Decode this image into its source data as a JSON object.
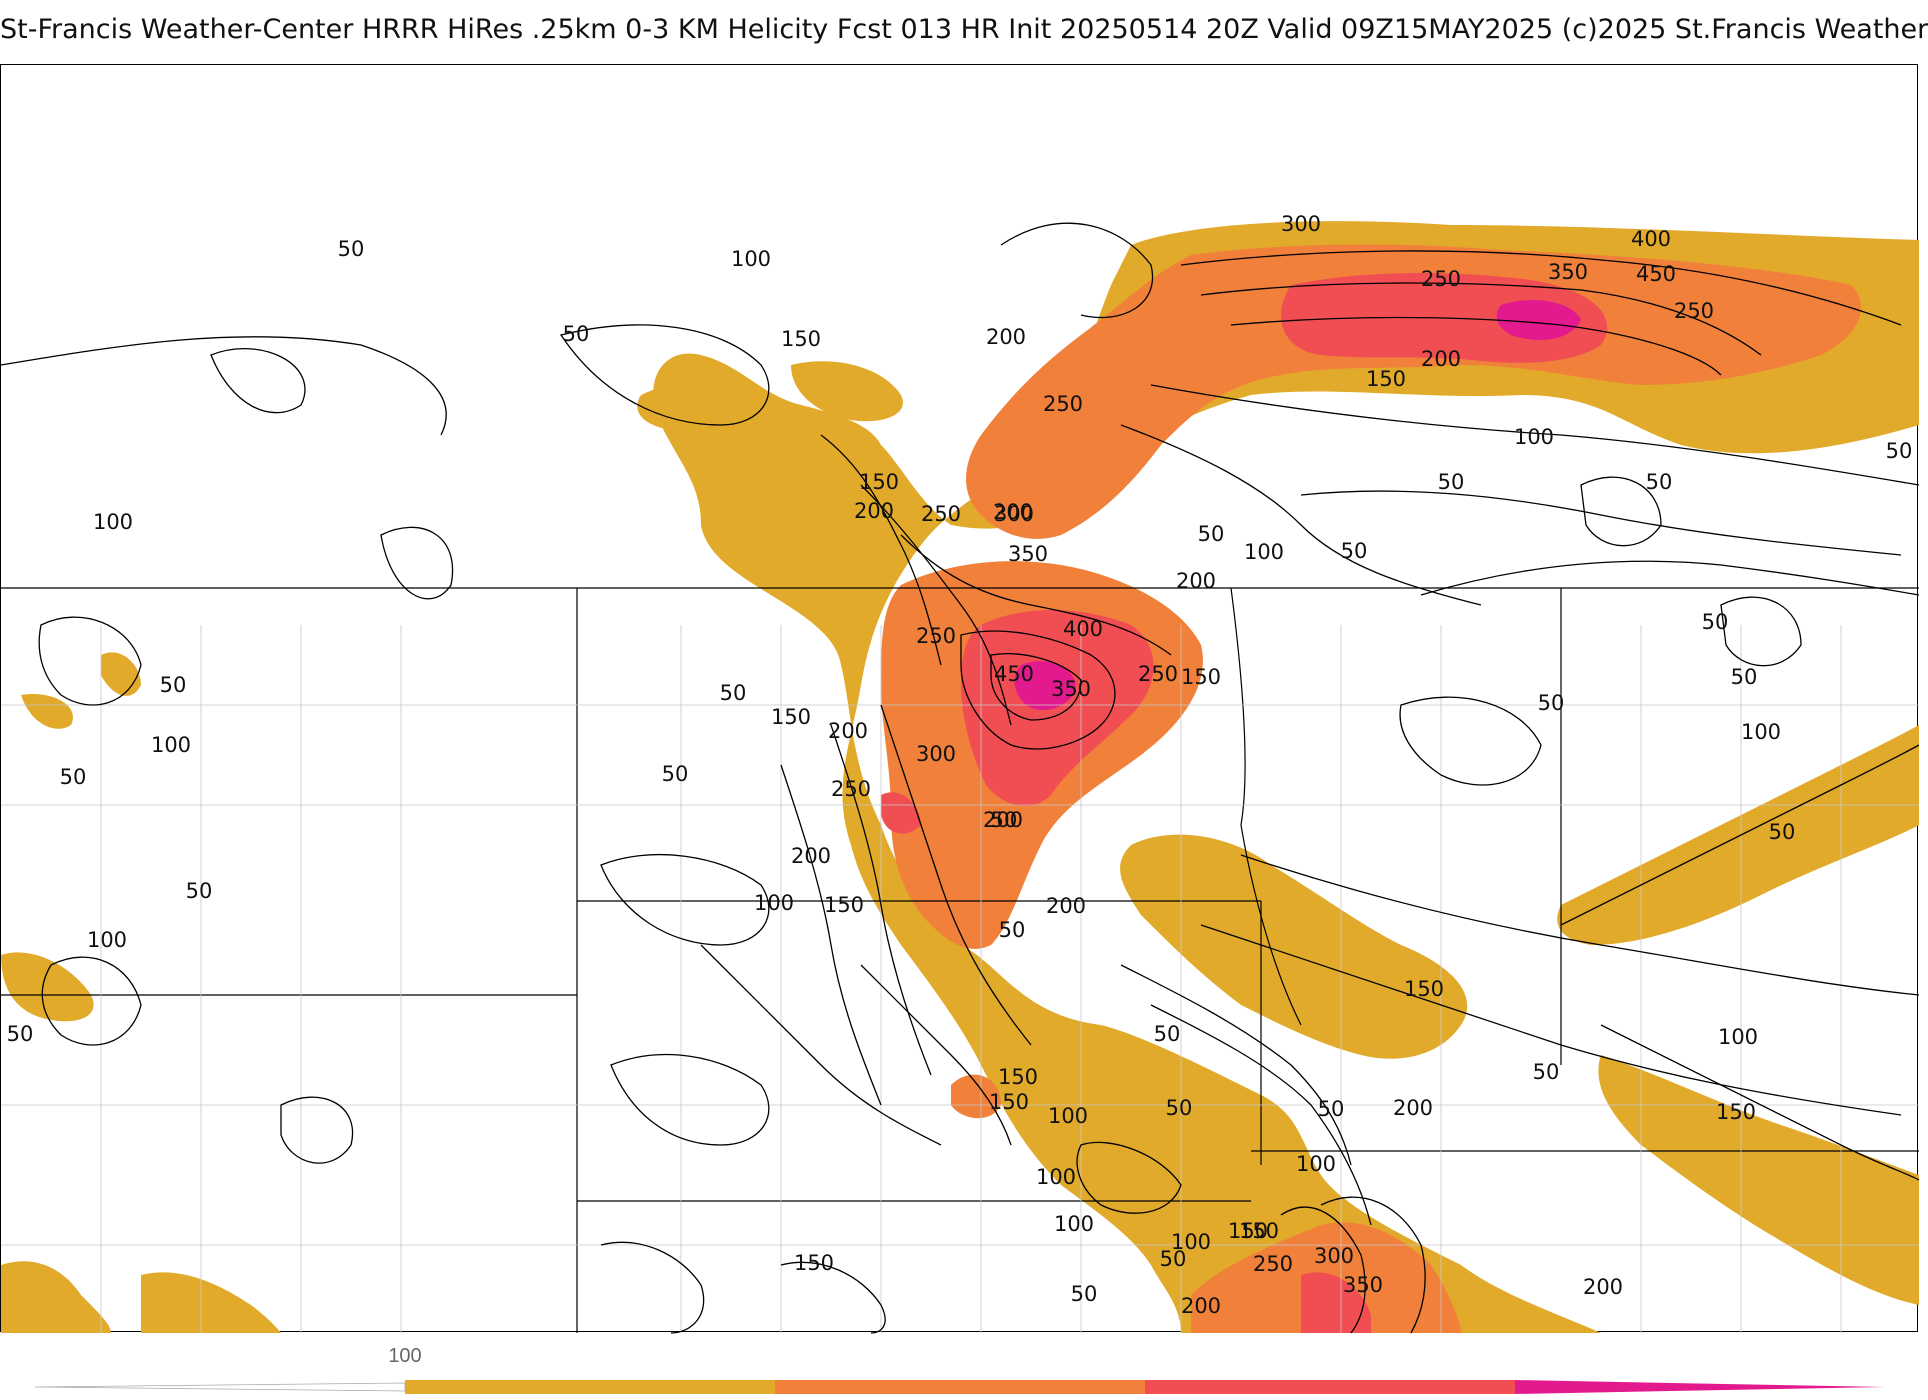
{
  "header": {
    "title": "St-Francis Weather-Center HRRR HiRes .25km 0-3 KM Helicity Fcst 013 HR Init 20250514 20Z  Valid 09Z15MAY2025    (c)2025 St.Francis Weather"
  },
  "map": {
    "field": "0-3 KM Helicity",
    "units_shown": "none",
    "contour_interval": 50,
    "fill_colors": {
      "100-200": "#e2aa2b",
      "200-300": "#f0803a",
      "300-400": "#f04e52",
      "400-500": "#e21a8e"
    },
    "contour_labels": [
      {
        "text": "50"
      },
      {
        "text": "100"
      },
      {
        "text": "50"
      },
      {
        "text": "150"
      },
      {
        "text": "200"
      },
      {
        "text": "250"
      },
      {
        "text": "300"
      },
      {
        "text": "400"
      },
      {
        "text": "450"
      },
      {
        "text": "350"
      },
      {
        "text": "250"
      },
      {
        "text": "250"
      },
      {
        "text": "200"
      },
      {
        "text": "150"
      },
      {
        "text": "100"
      },
      {
        "text": "50"
      },
      {
        "text": "50"
      },
      {
        "text": "50"
      },
      {
        "text": "150"
      },
      {
        "text": "200"
      },
      {
        "text": "250"
      },
      {
        "text": "200"
      },
      {
        "text": "300"
      },
      {
        "text": "350"
      },
      {
        "text": "50"
      },
      {
        "text": "100"
      },
      {
        "text": "50"
      },
      {
        "text": "200"
      },
      {
        "text": "250"
      },
      {
        "text": "400"
      },
      {
        "text": "450"
      },
      {
        "text": "350"
      },
      {
        "text": "250"
      },
      {
        "text": "150"
      },
      {
        "text": "50"
      },
      {
        "text": "50"
      },
      {
        "text": "50"
      },
      {
        "text": "100"
      },
      {
        "text": "50"
      },
      {
        "text": "150"
      },
      {
        "text": "200"
      },
      {
        "text": "300"
      },
      {
        "text": "50"
      },
      {
        "text": "50"
      },
      {
        "text": "250"
      },
      {
        "text": "200"
      },
      {
        "text": "200"
      },
      {
        "text": "50"
      },
      {
        "text": "100"
      },
      {
        "text": "150"
      },
      {
        "text": "200"
      },
      {
        "text": "50"
      },
      {
        "text": "100"
      },
      {
        "text": "50"
      },
      {
        "text": "100"
      },
      {
        "text": "50"
      },
      {
        "text": "50"
      },
      {
        "text": "100"
      },
      {
        "text": "50"
      },
      {
        "text": "150"
      },
      {
        "text": "100"
      },
      {
        "text": "50"
      },
      {
        "text": "150"
      },
      {
        "text": "50"
      },
      {
        "text": "100"
      },
      {
        "text": "50"
      },
      {
        "text": "200"
      },
      {
        "text": "100"
      },
      {
        "text": "150"
      },
      {
        "text": "100"
      },
      {
        "text": "150"
      },
      {
        "text": "150"
      },
      {
        "text": "50"
      },
      {
        "text": "100"
      },
      {
        "text": "150"
      },
      {
        "text": "100"
      },
      {
        "text": "50"
      },
      {
        "text": "150"
      },
      {
        "text": "250"
      },
      {
        "text": "300"
      },
      {
        "text": "350"
      },
      {
        "text": "200"
      },
      {
        "text": "200"
      },
      {
        "text": "50"
      }
    ]
  },
  "legend": {
    "tick_label": "100",
    "colors": [
      "#e2aa2b",
      "#f0803a",
      "#f04e52",
      "#e21a8e"
    ]
  }
}
